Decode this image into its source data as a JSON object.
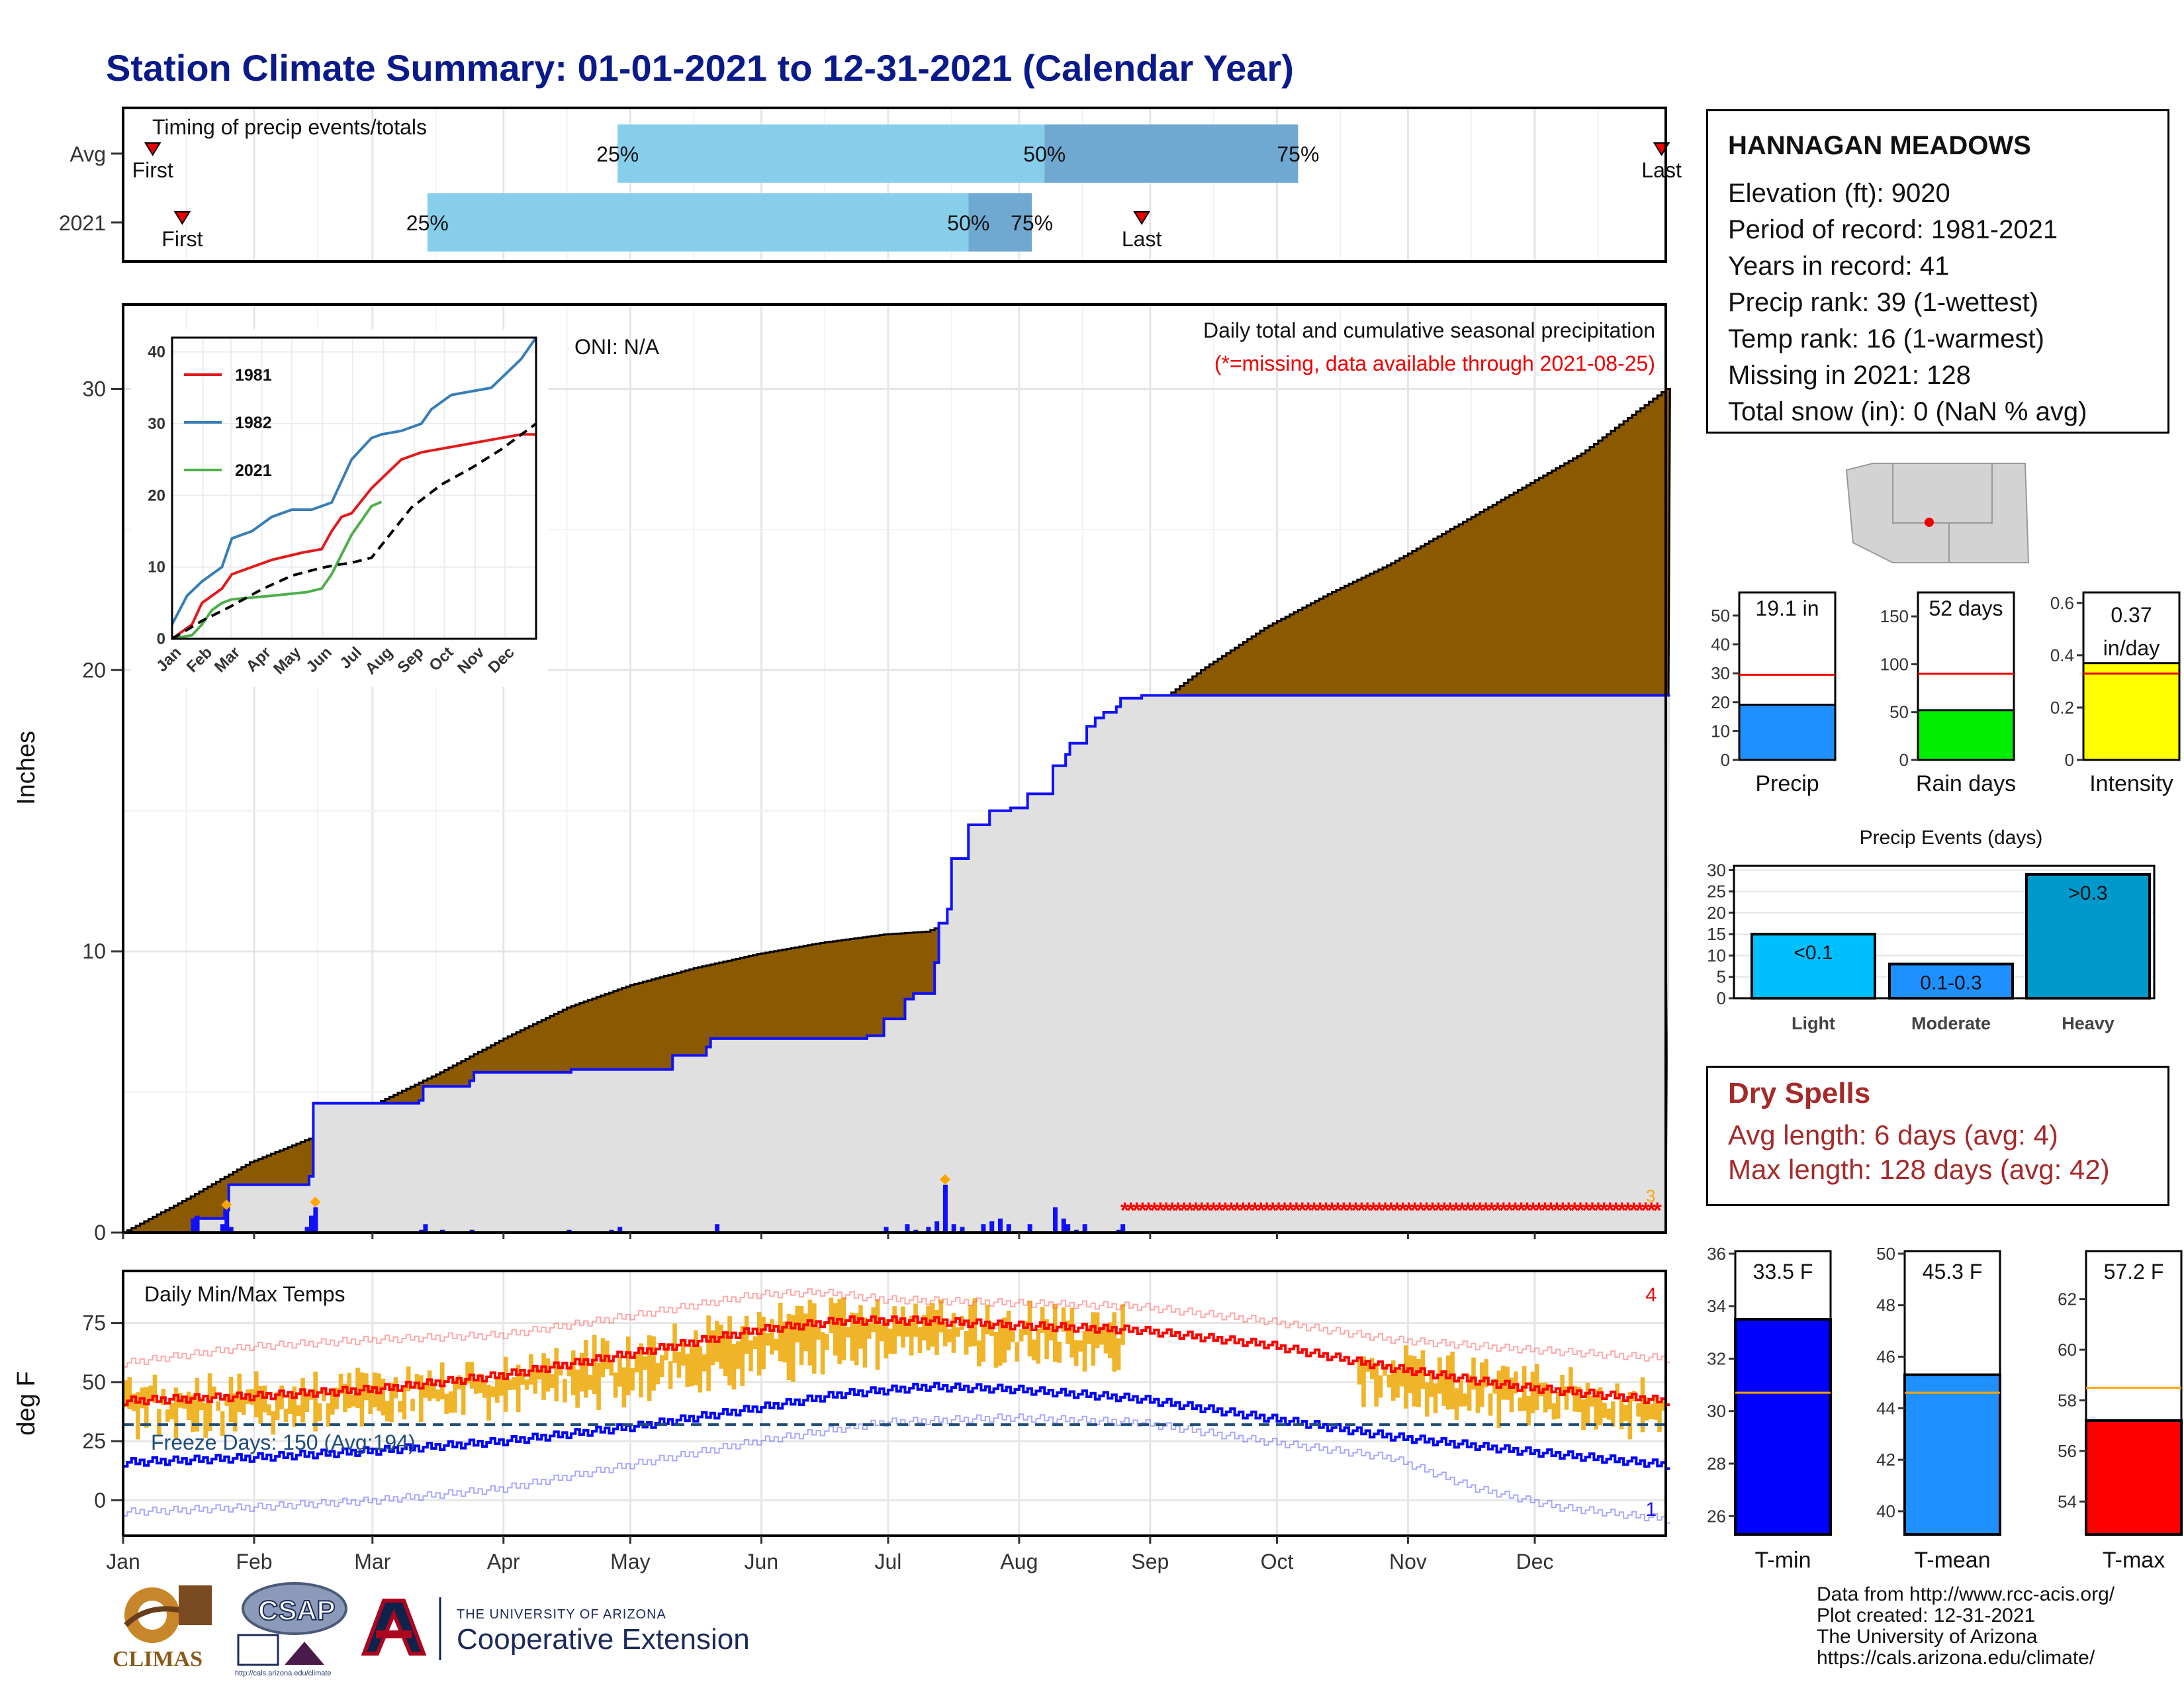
{
  "title": "Station Climate Summary: 01-01-2021 to 12-31-2021 (Calendar Year)",
  "station": {
    "name": "HANNAGAN MEADOWS",
    "rows": [
      "Elevation (ft): 9020",
      "Period of record: 1981-2021",
      "Years in record: 41",
      "Precip rank: 39 (1-wettest)",
      "Temp rank: 16 (1-warmest)",
      "Missing in 2021: 128",
      "Total snow (in): 0 (NaN % avg)"
    ]
  },
  "dry_spells": {
    "title": "Dry Spells",
    "avg": "Avg length: 6 days (avg: 4)",
    "max": "Max length: 128 days (avg: 42)"
  },
  "footer": [
    "Data from http://www.rcc-acis.org/",
    "Plot created: 12-31-2021",
    "The University of Arizona",
    "https://cals.arizona.edu/climate/"
  ],
  "logos": {
    "climas": "CLIMAS",
    "csap": "CSAP",
    "csap_url": "http://cals.arizona.edu/climate",
    "ua_small": "THE UNIVERSITY OF ARIZONA",
    "ua_big": "Cooperative Extension"
  },
  "colors": {
    "title": "#0a1a8a",
    "cumulative_avg_fill": "#8b5a00",
    "cumulative_2021_fill": "#e0e0e0",
    "cumulative_2021_line": "#1010ff",
    "missing": "#ff0000",
    "daily_temp_bars": "#f0b429",
    "tmax_normal": "#ff0000",
    "tmin_normal": "#0000ff",
    "light_blue": "#87ceeb",
    "steel_blue": "#6fa8d0"
  },
  "chart_data": [
    {
      "type": "timeline",
      "panel": "precip_timing",
      "title": "Timing of precip events/totals",
      "rows": [
        {
          "label": "Avg",
          "first_doy": 7,
          "q25_doy": 117,
          "q50_doy": 218,
          "q75_doy": 278,
          "last_doy": 364,
          "markers": {
            "first": "First",
            "q25": "25%",
            "q50": "50%",
            "q75": "75%",
            "last": "Last"
          }
        },
        {
          "label": "2021",
          "first_doy": 14,
          "q25_doy": 72,
          "q50_doy": 200,
          "q75_doy": 215,
          "last_doy": 241,
          "markers": {
            "first": "First",
            "q25": "25%",
            "q50": "50%",
            "q75": "75%",
            "last": "Last"
          }
        }
      ]
    },
    {
      "type": "area",
      "panel": "cumulative_precip",
      "title": "Daily total and cumulative seasonal precipitation",
      "subtitle": "(*=missing, data available through 2021-08-25)",
      "oni": "ONI: N/A",
      "ylabel": "Inches",
      "ylim": [
        0,
        33
      ],
      "yticks": [
        0,
        10,
        20,
        30
      ],
      "months": [
        "Jan",
        "Feb",
        "Mar",
        "Apr",
        "May",
        "Jun",
        "Jul",
        "Aug",
        "Sep",
        "Oct",
        "Nov",
        "Dec"
      ],
      "avg_cumulative": {
        "doy": [
          0,
          15,
          30,
          45,
          60,
          75,
          90,
          105,
          120,
          135,
          150,
          165,
          180,
          190,
          200,
          210,
          220,
          230,
          240,
          255,
          270,
          285,
          300,
          315,
          330,
          345,
          365
        ],
        "inches": [
          0,
          1.2,
          2.5,
          3.4,
          4.6,
          5.7,
          6.9,
          8.0,
          8.8,
          9.4,
          9.9,
          10.3,
          10.6,
          10.7,
          11.3,
          12.8,
          14.8,
          16.5,
          18.3,
          20.0,
          21.5,
          22.7,
          23.8,
          25.1,
          26.4,
          27.7,
          30.0
        ]
      },
      "obs_2021_cumulative": {
        "doy": [
          0,
          16,
          17,
          24,
          25,
          44,
          45,
          62,
          70,
          71,
          82,
          83,
          105,
          106,
          130,
          138,
          139,
          160,
          176,
          180,
          185,
          187,
          192,
          193,
          195,
          196,
          200,
          205,
          210,
          214,
          220,
          223,
          224,
          228,
          230,
          232,
          235,
          236,
          241,
          365
        ],
        "inches": [
          0,
          0,
          0.5,
          0.8,
          1.7,
          2.0,
          4.6,
          4.6,
          4.7,
          5.2,
          5.4,
          5.7,
          5.7,
          5.8,
          6.3,
          6.6,
          6.9,
          6.9,
          7.0,
          7.6,
          8.3,
          8.5,
          9.6,
          11.0,
          11.5,
          13.3,
          14.5,
          15.0,
          15.1,
          15.6,
          16.6,
          17.0,
          17.4,
          18.0,
          18.3,
          18.5,
          18.7,
          19.0,
          19.1,
          19.1
        ]
      },
      "daily_precip": {
        "doy": [
          16,
          17,
          23,
          24,
          25,
          43,
          44,
          45,
          70,
          71,
          75,
          82,
          105,
          115,
          117,
          140,
          180,
          185,
          187,
          190,
          192,
          194,
          196,
          198,
          203,
          205,
          207,
          209,
          214,
          220,
          222,
          223,
          225,
          227,
          235,
          236
        ],
        "inches": [
          0.5,
          0.6,
          0.3,
          0.8,
          0.2,
          0.2,
          0.6,
          0.9,
          0.1,
          0.3,
          0.1,
          0.1,
          0.1,
          0.1,
          0.2,
          0.3,
          0.2,
          0.3,
          0.1,
          0.2,
          0.4,
          1.7,
          0.3,
          0.2,
          0.3,
          0.4,
          0.5,
          0.3,
          0.3,
          0.9,
          0.5,
          0.3,
          0.1,
          0.3,
          0.1,
          0.3
        ]
      },
      "missing_from_doy": 237,
      "missing_label": "3"
    },
    {
      "type": "line",
      "panel": "inset_cumulative",
      "series": [
        {
          "name": "1981",
          "color": "#e31a1c",
          "x": [
            0,
            20,
            30,
            50,
            60,
            80,
            100,
            130,
            150,
            160,
            170,
            180,
            200,
            215,
            230,
            250,
            270,
            290,
            310,
            330,
            350,
            365
          ],
          "y": [
            0,
            2,
            5,
            7,
            9,
            10,
            11,
            12,
            12.5,
            15,
            17,
            17.5,
            21,
            23,
            25,
            26,
            26.5,
            27,
            27.5,
            28,
            28.5,
            28.5
          ]
        },
        {
          "name": "1982",
          "color": "#377eb8",
          "x": [
            0,
            15,
            30,
            50,
            60,
            80,
            100,
            120,
            140,
            160,
            170,
            180,
            200,
            210,
            230,
            250,
            260,
            280,
            300,
            320,
            335,
            350,
            365
          ],
          "y": [
            2,
            6,
            8,
            10,
            14,
            15,
            17,
            18,
            18,
            19,
            22,
            25,
            28,
            28.5,
            29,
            30,
            32,
            34,
            34.5,
            35,
            37,
            39,
            42
          ]
        },
        {
          "name": "2021",
          "color": "#4daf4a",
          "x": [
            0,
            20,
            30,
            40,
            50,
            60,
            100,
            135,
            150,
            160,
            180,
            200,
            210
          ],
          "y": [
            0,
            0.5,
            2,
            4,
            5,
            5.5,
            6,
            6.5,
            7,
            9,
            14.5,
            18.5,
            19.1
          ]
        },
        {
          "name": "Avg",
          "x": [
            0,
            30,
            60,
            90,
            120,
            150,
            165,
            180,
            200,
            220,
            240,
            270,
            300,
            330,
            365
          ],
          "y": [
            0,
            2.5,
            4.6,
            6.9,
            8.8,
            9.9,
            10.3,
            10.6,
            11.3,
            14.8,
            18.3,
            21.5,
            23.8,
            26.4,
            30
          ]
        }
      ],
      "ylim": [
        0,
        42
      ],
      "yticks": [
        0,
        10,
        20,
        30,
        40
      ],
      "months": [
        "Jan",
        "Feb",
        "Mar",
        "Apr",
        "May",
        "Jun",
        "Jul",
        "Aug",
        "Sep",
        "Oct",
        "Nov",
        "Dec"
      ]
    },
    {
      "type": "bar",
      "panel": "season_totals",
      "bars": [
        {
          "label": "Precip",
          "value": 19.1,
          "avg": 29.5,
          "ylim": [
            0,
            58
          ],
          "yticks": [
            0,
            10,
            20,
            30,
            40,
            50
          ],
          "color": "#1e90ff",
          "text": "19.1 in"
        },
        {
          "label": "Rain days",
          "value": 52,
          "avg": 90,
          "ylim": [
            0,
            175
          ],
          "yticks": [
            0,
            50,
            100,
            150
          ],
          "color": "#00ee00",
          "text": "52 days"
        },
        {
          "label": "Intensity",
          "value": 0.37,
          "avg": 0.33,
          "ylim": [
            0,
            0.64
          ],
          "yticks": [
            0.0,
            0.2,
            0.4,
            0.6
          ],
          "color": "#ffff00",
          "text": "0.37 in/day"
        }
      ]
    },
    {
      "type": "bar",
      "panel": "precip_events",
      "title": "Precip Events (days)",
      "categories": [
        "Light",
        "Moderate",
        "Heavy"
      ],
      "values": [
        15,
        8,
        29
      ],
      "bar_labels": [
        "<0.1",
        "0.1-0.3",
        ">0.3"
      ],
      "colors": [
        "#00bfff",
        "#1e90ff",
        "#0099cc"
      ],
      "ylim": [
        0,
        31
      ],
      "yticks": [
        0,
        5,
        10,
        15,
        20,
        25,
        30
      ]
    },
    {
      "type": "line",
      "panel": "daily_temps",
      "title": "Daily Min/Max Temps",
      "ylabel": "deg F",
      "ylim": [
        -15,
        97
      ],
      "yticks": [
        0,
        25,
        50,
        75
      ],
      "freeze_line": 32,
      "freeze_label": "Freeze Days: 150 (Avg:194)",
      "count_top": "4",
      "count_bottom": "1",
      "tmax_normal": {
        "doy": [
          0,
          30,
          60,
          90,
          120,
          150,
          170,
          190,
          210,
          240,
          270,
          300,
          330,
          365
        ],
        "f": [
          42,
          44,
          47,
          53,
          62,
          72,
          76,
          76,
          74,
          72,
          66,
          56,
          48,
          42
        ]
      },
      "tmin_normal": {
        "doy": [
          0,
          30,
          60,
          90,
          120,
          150,
          170,
          190,
          210,
          240,
          270,
          300,
          330,
          365
        ],
        "f": [
          16,
          18,
          21,
          25,
          31,
          39,
          45,
          48,
          47,
          43,
          35,
          27,
          21,
          15
        ]
      },
      "tmax_record": {
        "doy": [
          0,
          30,
          60,
          90,
          120,
          150,
          165,
          180,
          200,
          220,
          240,
          270,
          300,
          330,
          365
        ],
        "f": [
          58,
          65,
          68,
          70,
          78,
          87,
          88,
          85,
          84,
          83,
          82,
          76,
          68,
          64,
          60
        ]
      },
      "tmin_record": {
        "doy": [
          0,
          30,
          60,
          90,
          120,
          150,
          180,
          210,
          240,
          270,
          300,
          320,
          340,
          365
        ],
        "f": [
          -5,
          -3,
          0,
          5,
          15,
          25,
          33,
          35,
          33,
          25,
          18,
          5,
          -3,
          -8
        ]
      },
      "observed_ranges_available": [
        [
          0,
          237
        ],
        [
          292,
          365
        ]
      ]
    },
    {
      "type": "bar",
      "panel": "temp_summary",
      "bars": [
        {
          "label": "T-min",
          "value": 33.5,
          "avg": 30.7,
          "ylim": [
            25.3,
            36.1
          ],
          "yticks": [
            26,
            28,
            30,
            32,
            34,
            36
          ],
          "color": "#0000ff",
          "text": "33.5 F"
        },
        {
          "label": "T-mean",
          "value": 45.3,
          "avg": 44.6,
          "ylim": [
            39.1,
            50.1
          ],
          "yticks": [
            40,
            42,
            44,
            46,
            48,
            50
          ],
          "color": "#1e90ff",
          "text": "45.3 F"
        },
        {
          "label": "T-max",
          "value": 57.2,
          "avg": 58.5,
          "ylim": [
            52.7,
            63.9
          ],
          "yticks": [
            54,
            56,
            58,
            60,
            62
          ],
          "color": "#ff0000",
          "text": "57.2 F"
        }
      ]
    }
  ]
}
